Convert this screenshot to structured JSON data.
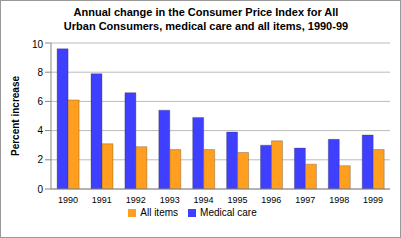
{
  "chart_data": {
    "type": "bar",
    "title": "Annual change in the Consumer Price Index for All Urban Consumers, medical care and all items, 1990-99",
    "y_label": "Percent increase",
    "categories": [
      "1990",
      "1991",
      "1992",
      "1993",
      "1994",
      "1995",
      "1996",
      "1997",
      "1998",
      "1999"
    ],
    "series": [
      {
        "name": "Medical care",
        "color": "#3f3fff",
        "values": [
          9.6,
          7.9,
          6.6,
          5.4,
          4.9,
          3.9,
          3.0,
          2.8,
          3.4,
          3.7
        ]
      },
      {
        "name": "All items",
        "color": "#ff9e1f",
        "values": [
          6.1,
          3.1,
          2.9,
          2.7,
          2.7,
          2.5,
          3.3,
          1.7,
          1.6,
          2.7
        ]
      }
    ],
    "ylim": [
      0,
      10
    ],
    "yticks": [
      0,
      2,
      4,
      6,
      8,
      10
    ],
    "grid": true,
    "legend": "bottom"
  }
}
